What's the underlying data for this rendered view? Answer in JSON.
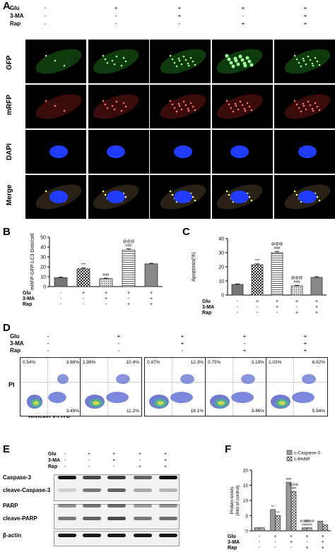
{
  "panelA": {
    "letter": "A",
    "treatments": [
      {
        "name": "Glu",
        "signs": [
          "-",
          "+",
          "+",
          "+",
          "+"
        ]
      },
      {
        "name": "3-MA",
        "signs": [
          "-",
          "-",
          "+",
          "-",
          "+"
        ]
      },
      {
        "name": "Rap",
        "signs": [
          "-",
          "-",
          "-",
          "+",
          "+"
        ]
      }
    ],
    "rows": [
      "GFP",
      "mRFP",
      "DAPI",
      "Merge"
    ]
  },
  "panelB": {
    "letter": "B",
    "chart_data": {
      "type": "bar",
      "ylabel": "mRFP-GFP-LC3 Dots/cell",
      "ylim": [
        0,
        50
      ],
      "yticks": [
        "0",
        "10",
        "20",
        "30",
        "40",
        "50"
      ],
      "values": [
        9,
        18,
        8,
        37,
        23
      ],
      "errors": [
        0.6,
        0.8,
        0.6,
        1.2,
        0.6
      ],
      "annotations": [
        "",
        "***",
        "###",
        "@@@\n###",
        ""
      ]
    },
    "treatments": [
      {
        "name": "Glu",
        "signs": [
          "-",
          "+",
          "+",
          "+",
          "+"
        ]
      },
      {
        "name": "3-MA",
        "signs": [
          "-",
          "-",
          "+",
          "-",
          "+"
        ]
      },
      {
        "name": "Rap",
        "signs": [
          "-",
          "-",
          "-",
          "+",
          "+"
        ]
      }
    ]
  },
  "panelC": {
    "letter": "C",
    "chart_data": {
      "type": "bar",
      "ylabel": "Apoptosis(%)",
      "ylim": [
        0,
        40
      ],
      "yticks": [
        "0",
        "10",
        "20",
        "30",
        "40"
      ],
      "values": [
        7.5,
        21.5,
        30,
        6.5,
        12.5
      ],
      "errors": [
        0.4,
        0.6,
        0.9,
        0.4,
        0.5
      ],
      "annotations": [
        "",
        "***",
        "@@@\n###",
        "@@@\n###",
        ""
      ]
    },
    "treatments": [
      {
        "name": "Glu",
        "signs": [
          "-",
          "+",
          "+",
          "+",
          "+"
        ]
      },
      {
        "name": "3-MA",
        "signs": [
          "-",
          "-",
          "+",
          "-",
          "+"
        ]
      },
      {
        "name": "Rap",
        "signs": [
          "-",
          "-",
          "-",
          "+",
          "+"
        ]
      }
    ]
  },
  "panelD": {
    "letter": "D",
    "treatments": [
      {
        "name": "Glu",
        "signs": [
          "-",
          "+",
          "+",
          "+",
          "+"
        ]
      },
      {
        "name": "3-MA",
        "signs": [
          "-",
          "-",
          "+",
          "-",
          "+"
        ]
      },
      {
        "name": "Rap",
        "signs": [
          "-",
          "-",
          "-",
          "+",
          "+"
        ]
      }
    ],
    "ylabel": "PI",
    "xlabel": "Annexin V-FITC",
    "plots": [
      {
        "ul": "0.54%",
        "ur": "3.88%",
        "lr": "3.49%"
      },
      {
        "ul": "1.98%",
        "ur": "10.4%",
        "lr": "11.2%"
      },
      {
        "ul": "0.87%",
        "ur": "12.3%",
        "lr": "18.1%"
      },
      {
        "ul": "0.75%",
        "ur": "3.19%",
        "lr": "3.46%"
      },
      {
        "ul": "1.03%",
        "ur": "6.92%",
        "lr": "5.94%"
      }
    ]
  },
  "panelE": {
    "letter": "E",
    "treatments": [
      {
        "name": "Glu",
        "signs": [
          "-",
          "+",
          "+",
          "+",
          "+"
        ]
      },
      {
        "name": "3-MA",
        "signs": [
          "-",
          "-",
          "+",
          "-",
          "+"
        ]
      },
      {
        "name": "Rap",
        "signs": [
          "-",
          "-",
          "-",
          "+",
          "+"
        ]
      }
    ],
    "blots": [
      "Caspase-3",
      "cleave-Caspase-3",
      "PARP",
      "cleave-PARP",
      "β-actin"
    ]
  },
  "panelF": {
    "letter": "F",
    "chart_data": {
      "type": "bar",
      "ylabel": "Protein levels\n(fold of control)",
      "ylim": [
        0,
        20
      ],
      "yticks": [
        "0",
        "5",
        "10",
        "15",
        "20"
      ],
      "series": [
        {
          "name": "c-Caspase-3",
          "values": [
            1,
            7,
            16,
            1,
            3.2
          ]
        },
        {
          "name": "c-PARP",
          "values": [
            1,
            5,
            13,
            1,
            2
          ]
        }
      ],
      "annotations": [
        [
          "",
          ""
        ],
        [
          "***",
          "***"
        ],
        [
          "###",
          "@@@\n###"
        ],
        [
          "@@@\n###",
          "@@@\n###"
        ],
        [
          "",
          ""
        ]
      ]
    },
    "treatments": [
      {
        "name": "Glu",
        "signs": [
          "-",
          "+",
          "+",
          "+",
          "+"
        ]
      },
      {
        "name": "3-MA",
        "signs": [
          "-",
          "-",
          "+",
          "-",
          "+"
        ]
      },
      {
        "name": "Rap",
        "signs": [
          "-",
          "-",
          "-",
          "+",
          "+"
        ]
      }
    ]
  }
}
